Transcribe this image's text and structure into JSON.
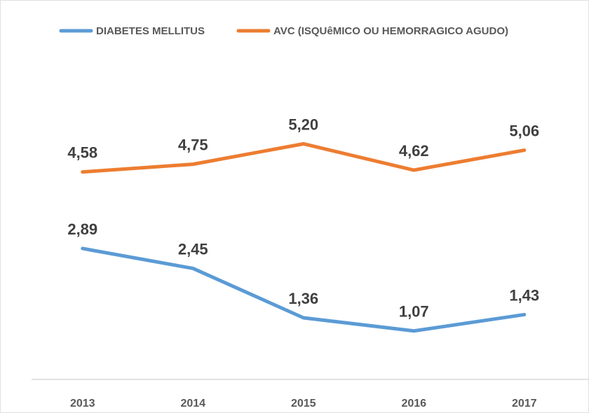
{
  "chart_data": {
    "type": "line",
    "categories": [
      "2013",
      "2014",
      "2015",
      "2016",
      "2017"
    ],
    "series": [
      {
        "name": "DIABETES MELLITUS",
        "color": "#5b9bd5",
        "values": [
          2.89,
          2.45,
          1.36,
          1.07,
          1.43
        ],
        "value_labels": [
          "2,89",
          "2,45",
          "1,36",
          "1,07",
          "1,43"
        ]
      },
      {
        "name": "AVC (ISQUêMICO OU HEMORRAGICO AGUDO)",
        "color": "#ed7d31",
        "values": [
          4.58,
          4.75,
          5.2,
          4.62,
          5.06
        ],
        "value_labels": [
          "4,58",
          "4,75",
          "5,20",
          "4,62",
          "5,06"
        ]
      }
    ],
    "ylim": [
      0,
      7
    ],
    "grid": false,
    "legend": "top"
  }
}
